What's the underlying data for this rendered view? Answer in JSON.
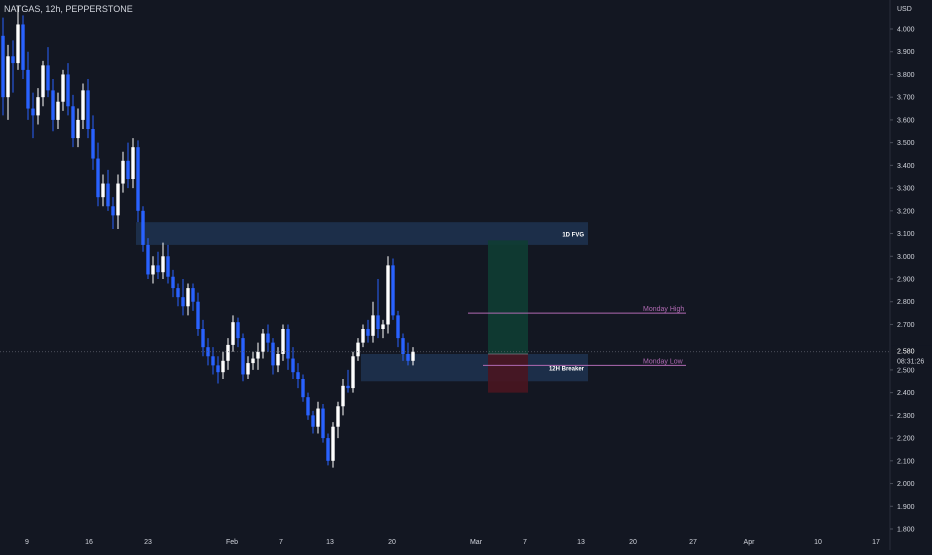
{
  "header": {
    "symbol": "NATGAS, 12h, PEPPERSTONE"
  },
  "price_axis": {
    "currency": "USD",
    "ticks": [
      "4.000",
      "3.900",
      "3.800",
      "3.700",
      "3.600",
      "3.500",
      "3.400",
      "3.300",
      "3.200",
      "3.100",
      "3.000",
      "2.900",
      "2.800",
      "2.700",
      "2.600",
      "2.500",
      "2.400",
      "2.300",
      "2.200",
      "2.100",
      "2.000",
      "1.900",
      "1.800"
    ],
    "current_price": "2.580",
    "countdown": "08:31:26"
  },
  "time_axis": {
    "labels": [
      "9",
      "16",
      "23",
      "Feb",
      "7",
      "13",
      "20",
      "Mar",
      "7",
      "13",
      "20",
      "27",
      "Apr",
      "10",
      "17"
    ]
  },
  "colors": {
    "background": "#131722",
    "up": "#ffffff",
    "down": "#2962ff",
    "zone": "#1e3250",
    "profit_zone": "#0f3d33",
    "loss_zone": "#4a1520",
    "level_line": "#b06ab3",
    "text": "#d1d4dc",
    "grid": "#1c2030"
  },
  "chart_data": {
    "type": "candlestick",
    "symbol": "NATGAS",
    "timeframe": "12h",
    "source": "PEPPERSTONE",
    "ylim": [
      1.8,
      4.0
    ],
    "y_tick_step": 0.1,
    "grid": false,
    "candles": [
      [
        3.97,
        4.05,
        3.62,
        3.7
      ],
      [
        3.7,
        3.93,
        3.6,
        3.88
      ],
      [
        3.88,
        3.95,
        3.72,
        3.85
      ],
      [
        3.85,
        4.1,
        3.82,
        4.02
      ],
      [
        4.02,
        4.06,
        3.78,
        3.82
      ],
      [
        3.82,
        3.9,
        3.6,
        3.65
      ],
      [
        3.65,
        3.72,
        3.52,
        3.62
      ],
      [
        3.62,
        3.74,
        3.58,
        3.7
      ],
      [
        3.7,
        3.86,
        3.66,
        3.84
      ],
      [
        3.84,
        3.92,
        3.7,
        3.73
      ],
      [
        3.73,
        3.78,
        3.55,
        3.6
      ],
      [
        3.6,
        3.72,
        3.56,
        3.68
      ],
      [
        3.68,
        3.82,
        3.64,
        3.8
      ],
      [
        3.8,
        3.85,
        3.62,
        3.66
      ],
      [
        3.66,
        3.71,
        3.48,
        3.52
      ],
      [
        3.52,
        3.65,
        3.48,
        3.6
      ],
      [
        3.6,
        3.76,
        3.56,
        3.73
      ],
      [
        3.73,
        3.78,
        3.52,
        3.56
      ],
      [
        3.56,
        3.62,
        3.38,
        3.43
      ],
      [
        3.43,
        3.5,
        3.22,
        3.26
      ],
      [
        3.26,
        3.36,
        3.22,
        3.32
      ],
      [
        3.32,
        3.38,
        3.2,
        3.22
      ],
      [
        3.22,
        3.26,
        3.12,
        3.18
      ],
      [
        3.18,
        3.36,
        3.12,
        3.32
      ],
      [
        3.32,
        3.46,
        3.28,
        3.42
      ],
      [
        3.42,
        3.5,
        3.3,
        3.34
      ],
      [
        3.34,
        3.52,
        3.3,
        3.48
      ],
      [
        3.48,
        3.51,
        3.15,
        3.2
      ],
      [
        3.2,
        3.22,
        3.02,
        3.05
      ],
      [
        3.05,
        3.08,
        2.9,
        2.92
      ],
      [
        2.92,
        3.0,
        2.88,
        2.96
      ],
      [
        2.96,
        3.02,
        2.9,
        2.93
      ],
      [
        2.93,
        3.06,
        2.9,
        3.0
      ],
      [
        3.0,
        3.05,
        2.88,
        2.91
      ],
      [
        2.91,
        2.94,
        2.82,
        2.86
      ],
      [
        2.86,
        2.88,
        2.78,
        2.82
      ],
      [
        2.82,
        2.9,
        2.74,
        2.78
      ],
      [
        2.78,
        2.88,
        2.74,
        2.86
      ],
      [
        2.86,
        2.88,
        2.76,
        2.8
      ],
      [
        2.8,
        2.84,
        2.65,
        2.68
      ],
      [
        2.68,
        2.72,
        2.56,
        2.6
      ],
      [
        2.6,
        2.64,
        2.52,
        2.56
      ],
      [
        2.56,
        2.6,
        2.48,
        2.52
      ],
      [
        2.52,
        2.56,
        2.44,
        2.49
      ],
      [
        2.49,
        2.58,
        2.46,
        2.54
      ],
      [
        2.54,
        2.64,
        2.5,
        2.61
      ],
      [
        2.61,
        2.74,
        2.58,
        2.71
      ],
      [
        2.71,
        2.73,
        2.6,
        2.64
      ],
      [
        2.64,
        2.66,
        2.45,
        2.48
      ],
      [
        2.48,
        2.56,
        2.46,
        2.53
      ],
      [
        2.53,
        2.58,
        2.5,
        2.55
      ],
      [
        2.55,
        2.62,
        2.5,
        2.58
      ],
      [
        2.58,
        2.68,
        2.55,
        2.66
      ],
      [
        2.66,
        2.7,
        2.58,
        2.62
      ],
      [
        2.62,
        2.64,
        2.48,
        2.52
      ],
      [
        2.52,
        2.6,
        2.49,
        2.57
      ],
      [
        2.57,
        2.7,
        2.54,
        2.68
      ],
      [
        2.68,
        2.7,
        2.5,
        2.55
      ],
      [
        2.55,
        2.6,
        2.46,
        2.49
      ],
      [
        2.49,
        2.53,
        2.42,
        2.46
      ],
      [
        2.46,
        2.48,
        2.36,
        2.38
      ],
      [
        2.38,
        2.4,
        2.28,
        2.3
      ],
      [
        2.3,
        2.32,
        2.22,
        2.25
      ],
      [
        2.25,
        2.36,
        2.22,
        2.33
      ],
      [
        2.33,
        2.35,
        2.18,
        2.2
      ],
      [
        2.2,
        2.22,
        2.08,
        2.1
      ],
      [
        2.1,
        2.27,
        2.07,
        2.25
      ],
      [
        2.25,
        2.36,
        2.2,
        2.34
      ],
      [
        2.34,
        2.46,
        2.3,
        2.43
      ],
      [
        2.43,
        2.5,
        2.4,
        2.42
      ],
      [
        2.42,
        2.58,
        2.4,
        2.56
      ],
      [
        2.56,
        2.64,
        2.54,
        2.62
      ],
      [
        2.62,
        2.7,
        2.6,
        2.68
      ],
      [
        2.68,
        2.72,
        2.62,
        2.65
      ],
      [
        2.65,
        2.8,
        2.62,
        2.74
      ],
      [
        2.74,
        2.9,
        2.64,
        2.68
      ],
      [
        2.68,
        2.72,
        2.64,
        2.7
      ],
      [
        2.7,
        3.0,
        2.66,
        2.96
      ],
      [
        2.96,
        2.99,
        2.72,
        2.74
      ],
      [
        2.74,
        2.76,
        2.6,
        2.64
      ],
      [
        2.64,
        2.66,
        2.54,
        2.57
      ],
      [
        2.57,
        2.62,
        2.52,
        2.54
      ],
      [
        2.54,
        2.6,
        2.52,
        2.58
      ]
    ],
    "zones": [
      {
        "label": "1D FVG",
        "from_index": 27,
        "to_index": 117,
        "top": 3.15,
        "bottom": 3.05
      },
      {
        "label": "12H Breaker",
        "from_index": 72,
        "to_index": 117,
        "top": 2.57,
        "bottom": 2.45
      }
    ],
    "levels": [
      {
        "label": "Monday High",
        "price": 2.75,
        "from_index": 93
      },
      {
        "label": "Monday Low",
        "price": 2.52,
        "from_index": 96
      }
    ],
    "position": {
      "entry": 2.57,
      "target": 3.07,
      "stop": 2.4,
      "from_index": 97,
      "to_index": 105
    },
    "current_price": 2.58
  }
}
